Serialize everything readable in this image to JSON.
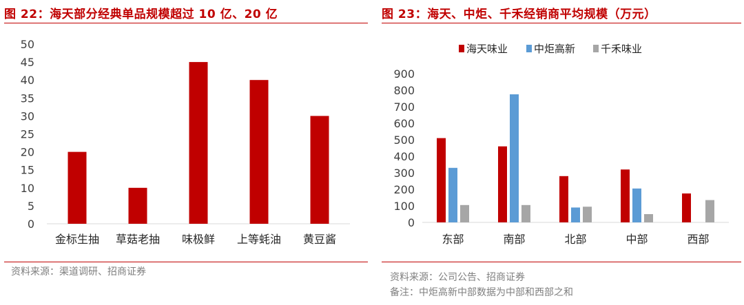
{
  "colors": {
    "red": "#c00000",
    "blue": "#5b9bd5",
    "gray": "#a6a6a6",
    "accent": "#c00000",
    "note": "#7f7f7f"
  },
  "left": {
    "title": "图 22：海天部分经典单品规模超过 10 亿、20 亿",
    "source": "资料来源：渠道调研、招商证券"
  },
  "right": {
    "title": "图 23：海天、中炬、千禾经销商平均规模（万元）",
    "source": "资料来源：公司公告、招商证券",
    "note": "备注：中炬高新中部数据为中部和西部之和"
  },
  "chart_data": [
    {
      "type": "bar",
      "categories": [
        "金标生抽",
        "草菇老抽",
        "味极鲜",
        "上等蚝油",
        "黄豆酱"
      ],
      "values": [
        20,
        10,
        45,
        40,
        30
      ],
      "ylim": [
        0,
        50
      ],
      "yticks": [
        0,
        5,
        10,
        15,
        20,
        25,
        30,
        35,
        40,
        45,
        50
      ],
      "grid": false,
      "color": "#c00000"
    },
    {
      "type": "bar",
      "categories": [
        "东部",
        "南部",
        "北部",
        "中部",
        "西部"
      ],
      "series": [
        {
          "name": "海天味业",
          "values": [
            510,
            460,
            280,
            320,
            175
          ],
          "color": "#c00000"
        },
        {
          "name": "中炬高新",
          "values": [
            330,
            775,
            90,
            205,
            null
          ],
          "color": "#5b9bd5"
        },
        {
          "name": "千禾味业",
          "values": [
            105,
            105,
            95,
            50,
            135
          ],
          "color": "#a6a6a6"
        }
      ],
      "ylim": [
        0,
        900
      ],
      "yticks": [
        0,
        100,
        200,
        300,
        400,
        500,
        600,
        700,
        800,
        900
      ],
      "legend": "top",
      "grid": false
    }
  ]
}
